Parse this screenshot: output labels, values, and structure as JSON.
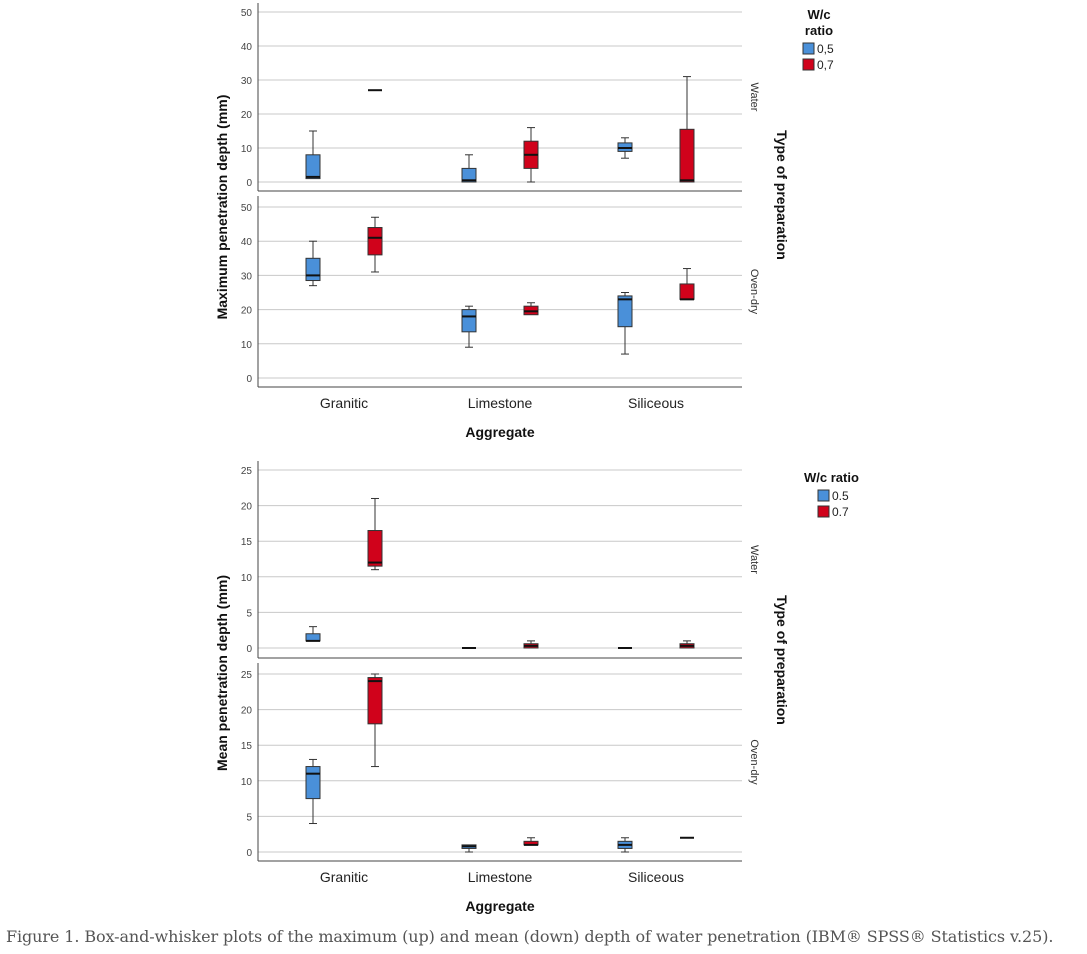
{
  "chart_data": [
    {
      "type": "boxplot",
      "ylabel": "Maximum penetration depth (mm)",
      "xlabel": "Aggregate",
      "panel_axis_label": "Type of preparation",
      "ylim": [
        0,
        50
      ],
      "yticks": [
        0,
        10,
        20,
        30,
        40,
        50
      ],
      "categories": [
        "Granitic",
        "Limestone",
        "Siliceous"
      ],
      "legend": {
        "title_lines": [
          "W/c",
          "ratio"
        ],
        "placement": "top-right",
        "series": [
          {
            "name": "0,5",
            "color": "#4a90d9"
          },
          {
            "name": "0,7",
            "color": "#d0021b"
          }
        ]
      },
      "panels": [
        {
          "name": "Water",
          "groups": {
            "Granitic": [
              {
                "min": 1,
                "q1": 1,
                "median": 1.5,
                "q3": 8,
                "max": 15
              },
              {
                "min": 27,
                "q1": 27,
                "median": 27,
                "q3": 27,
                "max": 27
              }
            ],
            "Limestone": [
              {
                "min": 0,
                "q1": 0,
                "median": 0.5,
                "q3": 4,
                "max": 8
              },
              {
                "min": 0,
                "q1": 4,
                "median": 8,
                "q3": 12,
                "max": 16
              }
            ],
            "Siliceous": [
              {
                "min": 7,
                "q1": 9,
                "median": 10,
                "q3": 11.5,
                "max": 13
              },
              {
                "min": 0,
                "q1": 0,
                "median": 0.5,
                "q3": 15.5,
                "max": 31
              }
            ]
          }
        },
        {
          "name": "Oven-dry",
          "groups": {
            "Granitic": [
              {
                "min": 27,
                "q1": 28.5,
                "median": 30,
                "q3": 35,
                "max": 40
              },
              {
                "min": 31,
                "q1": 36,
                "median": 41,
                "q3": 44,
                "max": 47
              }
            ],
            "Limestone": [
              {
                "min": 9,
                "q1": 13.5,
                "median": 18,
                "q3": 20,
                "max": 21
              },
              {
                "min": 18.5,
                "q1": 18.5,
                "median": 19.5,
                "q3": 21,
                "max": 22
              }
            ],
            "Siliceous": [
              {
                "min": 7,
                "q1": 15,
                "median": 23,
                "q3": 24,
                "max": 25
              },
              {
                "min": 23,
                "q1": 23,
                "median": 23,
                "q3": 27.5,
                "max": 32
              }
            ]
          }
        }
      ]
    },
    {
      "type": "boxplot",
      "ylabel": "Mean penetration depth (mm)",
      "xlabel": "Aggregate",
      "panel_axis_label": "Type of preparation",
      "ylim": [
        0,
        25
      ],
      "yticks": [
        0,
        5,
        10,
        15,
        20,
        25
      ],
      "categories": [
        "Granitic",
        "Limestone",
        "Siliceous"
      ],
      "legend": {
        "title_lines": [
          "W/c ratio"
        ],
        "placement": "top-right",
        "series": [
          {
            "name": "0.5",
            "color": "#4a90d9"
          },
          {
            "name": "0.7",
            "color": "#d0021b"
          }
        ]
      },
      "panels": [
        {
          "name": "Water",
          "groups": {
            "Granitic": [
              {
                "min": 1,
                "q1": 1,
                "median": 1,
                "q3": 2,
                "max": 3
              },
              {
                "min": 11,
                "q1": 11.5,
                "median": 12,
                "q3": 16.5,
                "max": 21
              }
            ],
            "Limestone": [
              {
                "min": 0,
                "q1": 0,
                "median": 0,
                "q3": 0,
                "max": 0
              },
              {
                "min": 0,
                "q1": 0,
                "median": 0.3,
                "q3": 0.6,
                "max": 1
              }
            ],
            "Siliceous": [
              {
                "min": 0,
                "q1": 0,
                "median": 0,
                "q3": 0,
                "max": 0
              },
              {
                "min": 0,
                "q1": 0,
                "median": 0.3,
                "q3": 0.6,
                "max": 1
              }
            ]
          }
        },
        {
          "name": "Oven-dry",
          "groups": {
            "Granitic": [
              {
                "min": 4,
                "q1": 7.5,
                "median": 11,
                "q3": 12,
                "max": 13
              },
              {
                "min": 12,
                "q1": 18,
                "median": 24,
                "q3": 24.5,
                "max": 25
              }
            ],
            "Limestone": [
              {
                "min": 0,
                "q1": 0.5,
                "median": 0.8,
                "q3": 1,
                "max": 1
              },
              {
                "min": 1,
                "q1": 1,
                "median": 1,
                "q3": 1.5,
                "max": 2
              }
            ],
            "Siliceous": [
              {
                "min": 0,
                "q1": 0.5,
                "median": 1,
                "q3": 1.5,
                "max": 2
              },
              {
                "min": 2,
                "q1": 2,
                "median": 2,
                "q3": 2,
                "max": 2
              }
            ]
          }
        }
      ]
    }
  ],
  "caption": "Figure 1. Box-and-whisker plots of the maximum (up) and mean (down) depth of water penetration (IBM® SPSS® Statistics v.25)."
}
